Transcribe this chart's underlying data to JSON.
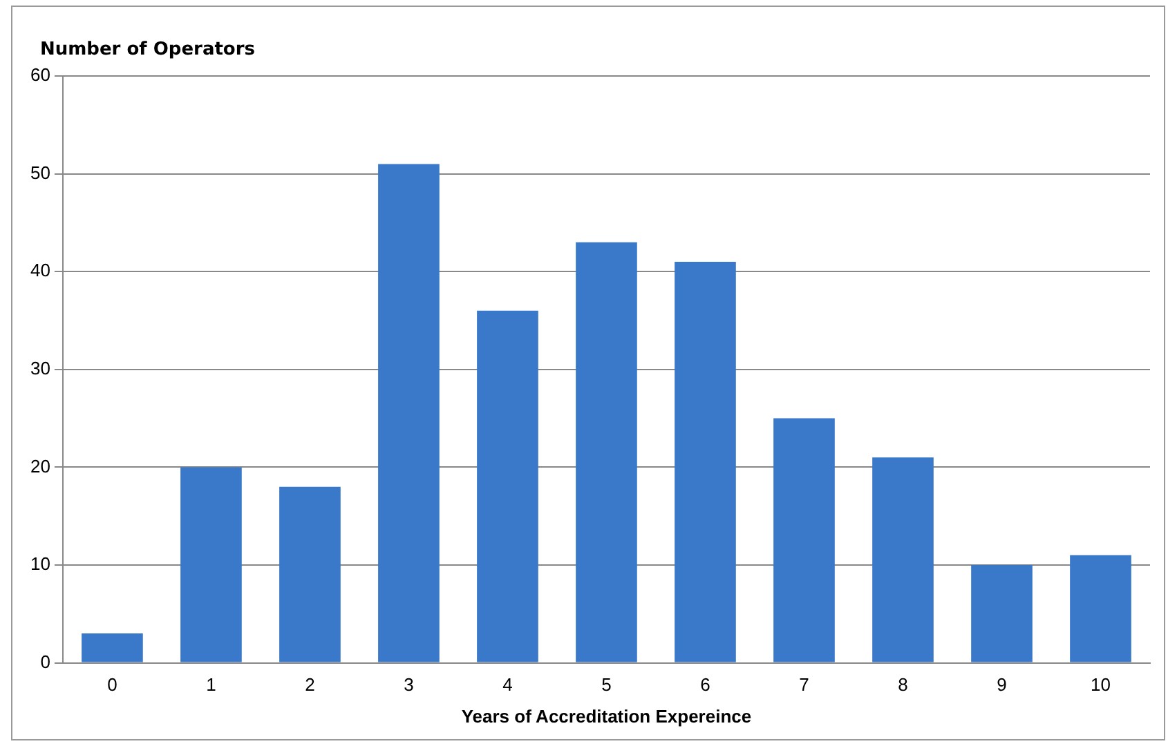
{
  "chart_data": {
    "type": "bar",
    "ylabel": "Number of Operators",
    "xlabel": "Years of Accreditation Expereince",
    "categories": [
      "0",
      "1",
      "2",
      "3",
      "4",
      "5",
      "6",
      "7",
      "8",
      "9",
      "10"
    ],
    "values": [
      3,
      20,
      18,
      51,
      36,
      43,
      41,
      25,
      21,
      10,
      11
    ],
    "color": "#3a78c9",
    "ylim": [
      0,
      60
    ],
    "yticks": [
      0,
      10,
      20,
      30,
      40,
      50,
      60
    ],
    "grid": "y",
    "legend": false
  }
}
